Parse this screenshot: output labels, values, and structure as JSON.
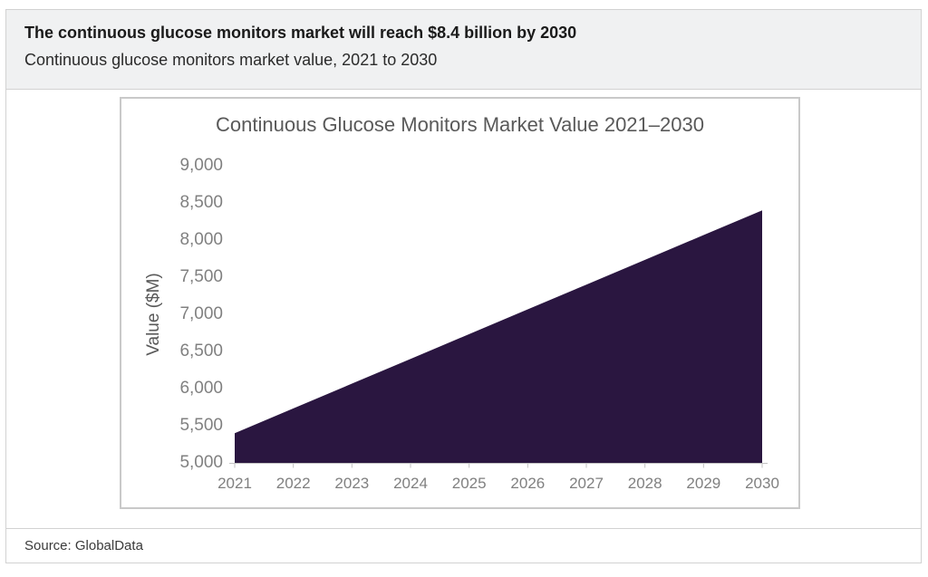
{
  "header": {
    "headline": "The continuous glucose monitors market will reach $8.4 billion by 2030",
    "subtitle": "Continuous glucose monitors market value, 2021 to 2030"
  },
  "chart_data": {
    "type": "area",
    "title": "Continuous Glucose Monitors Market Value 2021–2030",
    "x": [
      2021,
      2022,
      2023,
      2024,
      2025,
      2026,
      2027,
      2028,
      2029,
      2030
    ],
    "values": [
      5400,
      5733,
      6067,
      6400,
      6733,
      7067,
      7400,
      7733,
      8067,
      8400
    ],
    "xlabel": "",
    "ylabel": "Value ($M)",
    "ylim": [
      5000,
      9000
    ],
    "ytick_step": 500,
    "grid": false,
    "legend": false,
    "colors": {
      "area_fill": "#2a1640",
      "axis": "#c2c2c2",
      "tick_label": "#808080",
      "axis_title": "#595959",
      "chart_title": "#595959"
    }
  },
  "footer": {
    "source": "Source: GlobalData"
  }
}
